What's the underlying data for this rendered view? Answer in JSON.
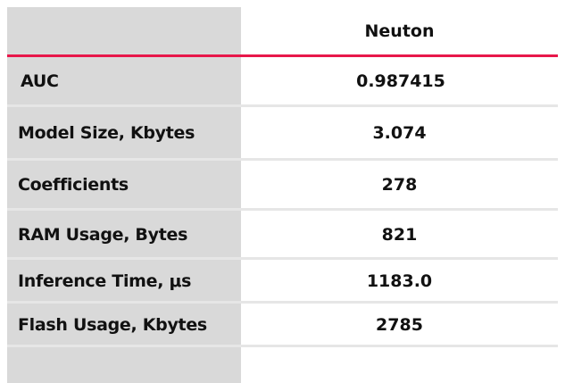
{
  "table": {
    "header": {
      "label": "",
      "column": "Neuton"
    },
    "accent_color": "#e8174a",
    "rows": [
      {
        "label": "AUC",
        "value": "0.987415"
      },
      {
        "label": "Model Size, Kbytes",
        "value": "3.074"
      },
      {
        "label": "Coefficients",
        "value": "278"
      },
      {
        "label": "RAM Usage, Bytes",
        "value": "821"
      },
      {
        "label": "Inference Time, μs",
        "value": "1183.0"
      },
      {
        "label": "Flash Usage, Kbytes",
        "value": "2785"
      }
    ]
  }
}
